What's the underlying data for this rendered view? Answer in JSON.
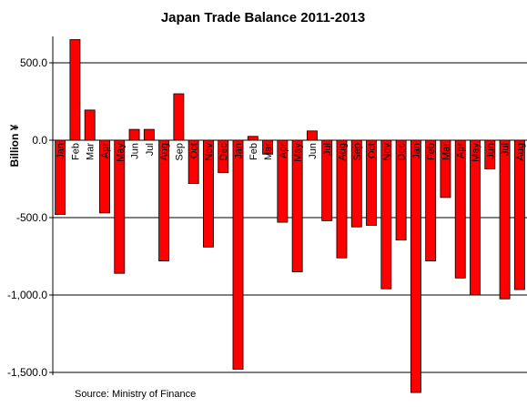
{
  "chart_data": {
    "type": "bar",
    "title": "Japan  Trade Balance 2011-2013",
    "xlabel": "",
    "ylabel": "Billion ¥",
    "ylim": [
      -1500,
      700
    ],
    "yticks": [
      500,
      0,
      -500,
      -1000,
      -1500
    ],
    "ytick_labels": [
      "500.0",
      "0.0",
      "-500.0",
      "-1,000.0",
      "-1,500.0"
    ],
    "grid": "horizontal",
    "bar_color": "#ff0000",
    "categories": [
      "Jan",
      "Feb",
      "Mar",
      "Apr",
      "May",
      "Jun",
      "Jul",
      "Aug",
      "Sep",
      "Oct",
      "Nov",
      "Dec",
      "Jan",
      "Feb",
      "Mar",
      "Apr",
      "May",
      "Jun",
      "Jul",
      "Aug",
      "Sep",
      "Oct",
      "Nov",
      "Dec",
      "Jan",
      "Feb",
      "Mar",
      "Apr",
      "May",
      "Jun",
      "Jul",
      "Aug"
    ],
    "values": [
      -480,
      650,
      195,
      -470,
      -860,
      70,
      70,
      -780,
      300,
      -280,
      -690,
      -210,
      -1480,
      25,
      -90,
      -530,
      -850,
      60,
      -520,
      -760,
      -560,
      -550,
      -960,
      -645,
      -1630,
      -780,
      -370,
      -890,
      -1000,
      -185,
      -1025,
      -965
    ],
    "source": "Source: Ministry of Finance"
  }
}
